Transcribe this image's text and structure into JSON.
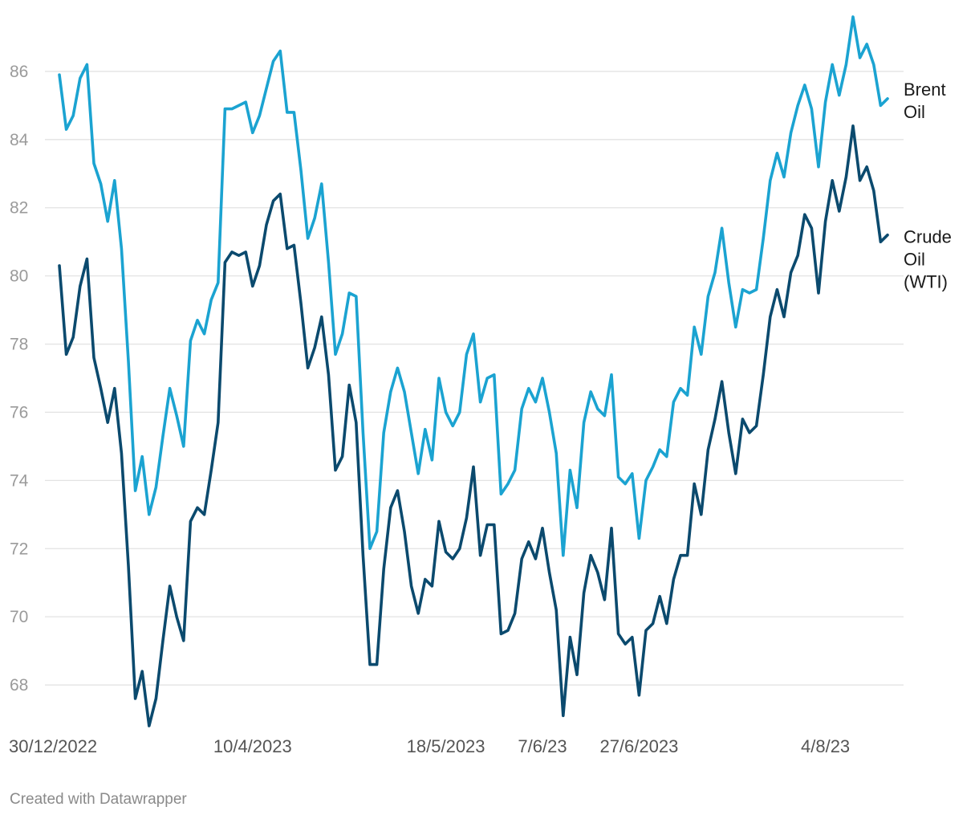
{
  "footer": {
    "credit": "Created with Datawrapper"
  },
  "chart_data": {
    "type": "line",
    "title": "",
    "xlabel": "",
    "ylabel": "",
    "ylim": [
      66.8,
      87.6
    ],
    "yticks": [
      68,
      70,
      72,
      74,
      76,
      78,
      80,
      82,
      84,
      86
    ],
    "grid": true,
    "legend": "direct labels at right end of lines",
    "x_tick_labels": [
      {
        "label": "30/12/2022",
        "index": 0
      },
      {
        "label": "10/4/2023",
        "index": 28
      },
      {
        "label": "18/5/2023",
        "index": 56
      },
      {
        "label": "7/6/23",
        "index": 70
      },
      {
        "label": "27/6/2023",
        "index": 84
      },
      {
        "label": "4/8/23",
        "index": 111
      }
    ],
    "series": [
      {
        "name": "Brent Oil",
        "label_lines": [
          "Brent",
          "Oil"
        ],
        "color": "#1ba3d1",
        "values": [
          85.9,
          84.3,
          84.7,
          85.8,
          86.2,
          83.3,
          82.7,
          81.6,
          82.8,
          80.8,
          77.5,
          73.7,
          74.7,
          73.0,
          73.8,
          75.3,
          76.7,
          75.9,
          75.0,
          78.1,
          78.7,
          78.3,
          79.3,
          79.8,
          84.9,
          84.9,
          85.0,
          85.1,
          84.2,
          84.7,
          85.5,
          86.3,
          86.6,
          84.8,
          84.8,
          83.1,
          81.1,
          81.7,
          82.7,
          80.4,
          77.7,
          78.3,
          79.5,
          79.4,
          75.4,
          72.0,
          72.5,
          75.4,
          76.6,
          77.3,
          76.6,
          75.4,
          74.2,
          75.5,
          74.6,
          77.0,
          76.0,
          75.6,
          76.0,
          77.7,
          78.3,
          76.3,
          77.0,
          77.1,
          73.6,
          73.9,
          74.3,
          76.1,
          76.7,
          76.3,
          77.0,
          76.0,
          74.8,
          71.8,
          74.3,
          73.2,
          75.7,
          76.6,
          76.1,
          75.9,
          77.1,
          74.1,
          73.9,
          74.2,
          72.3,
          74.0,
          74.4,
          74.9,
          74.7,
          76.3,
          76.7,
          76.5,
          78.5,
          77.7,
          79.4,
          80.1,
          81.4,
          79.8,
          78.5,
          79.6,
          79.5,
          79.6,
          81.1,
          82.8,
          83.6,
          82.9,
          84.2,
          85.0,
          85.6,
          84.9,
          83.2,
          85.1,
          86.2,
          85.3,
          86.2,
          87.6,
          86.4,
          86.8,
          86.2,
          85.0,
          85.2
        ]
      },
      {
        "name": "Crude Oil (WTI)",
        "label_lines": [
          "Crude",
          "Oil",
          "(WTI)"
        ],
        "color": "#0b4a6e",
        "values": [
          80.3,
          77.7,
          78.2,
          79.7,
          80.5,
          77.6,
          76.7,
          75.7,
          76.7,
          74.8,
          71.5,
          67.6,
          68.4,
          66.8,
          67.6,
          69.3,
          70.9,
          70.0,
          69.3,
          72.8,
          73.2,
          73.0,
          74.3,
          75.7,
          80.4,
          80.7,
          80.6,
          80.7,
          79.7,
          80.3,
          81.5,
          82.2,
          82.4,
          80.8,
          80.9,
          79.2,
          77.3,
          77.9,
          78.8,
          77.1,
          74.3,
          74.7,
          76.8,
          75.7,
          71.8,
          68.6,
          68.6,
          71.4,
          73.2,
          73.7,
          72.5,
          70.9,
          70.1,
          71.1,
          70.9,
          72.8,
          71.9,
          71.7,
          72.0,
          72.9,
          74.4,
          71.8,
          72.7,
          72.7,
          69.5,
          69.6,
          70.1,
          71.7,
          72.2,
          71.7,
          72.6,
          71.3,
          70.2,
          67.1,
          69.4,
          68.3,
          70.7,
          71.8,
          71.3,
          70.5,
          72.6,
          69.5,
          69.2,
          69.4,
          67.7,
          69.6,
          69.8,
          70.6,
          69.8,
          71.1,
          71.8,
          71.8,
          73.9,
          73.0,
          74.9,
          75.8,
          76.9,
          75.4,
          74.2,
          75.8,
          75.4,
          75.6,
          77.1,
          78.8,
          79.6,
          78.8,
          80.1,
          80.6,
          81.8,
          81.4,
          79.5,
          81.6,
          82.8,
          81.9,
          82.9,
          84.4,
          82.8,
          83.2,
          82.5,
          81.0,
          81.2
        ]
      }
    ]
  }
}
